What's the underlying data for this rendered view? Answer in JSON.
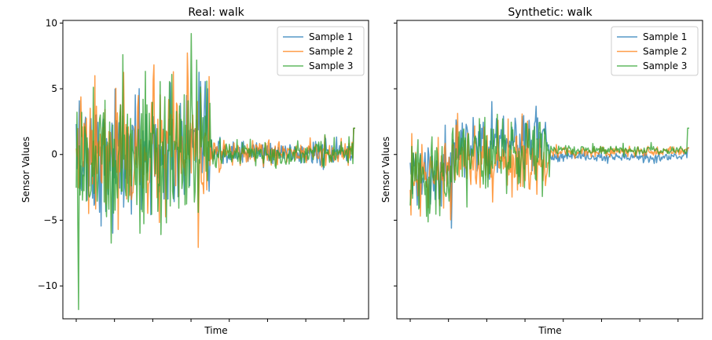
{
  "chart_data": [
    {
      "type": "line",
      "title": "Real: walk",
      "xlabel": "Time",
      "ylabel": "Sensor Values",
      "ylim": [
        -12.5,
        10.2
      ],
      "yticks": [
        10,
        5,
        0,
        -5,
        -10
      ],
      "ytick_labels": [
        "10",
        "5",
        "0",
        "−5",
        "−10"
      ],
      "x_tick_labels_visible": false,
      "n_xticks": 8,
      "grid": false,
      "legend_position": "top-right",
      "n_points": 360,
      "series": [
        {
          "name": "Sample 1",
          "color": "#1f77b4",
          "description_mode": "noisy walk"
        },
        {
          "name": "Sample 2",
          "color": "#ff7f0e",
          "description_mode": "noisy walk"
        },
        {
          "name": "Sample 3",
          "color": "#2ca02c",
          "description_mode": "noisy walk"
        }
      ]
    },
    {
      "type": "line",
      "title": "Synthetic: walk",
      "xlabel": "Time",
      "ylabel": "Sensor Values",
      "ylim": [
        -12.5,
        10.2
      ],
      "yticks": [
        10,
        5,
        0,
        -5,
        -10
      ],
      "ytick_labels": [
        "",
        "",
        "",
        "",
        ""
      ],
      "x_tick_labels_visible": false,
      "n_xticks": 8,
      "grid": false,
      "legend_position": "top-right",
      "n_points": 360,
      "series": [
        {
          "name": "Sample 1",
          "color": "#1f77b4"
        },
        {
          "name": "Sample 2",
          "color": "#ff7f0e"
        },
        {
          "name": "Sample 3",
          "color": "#2ca02c"
        }
      ]
    }
  ]
}
